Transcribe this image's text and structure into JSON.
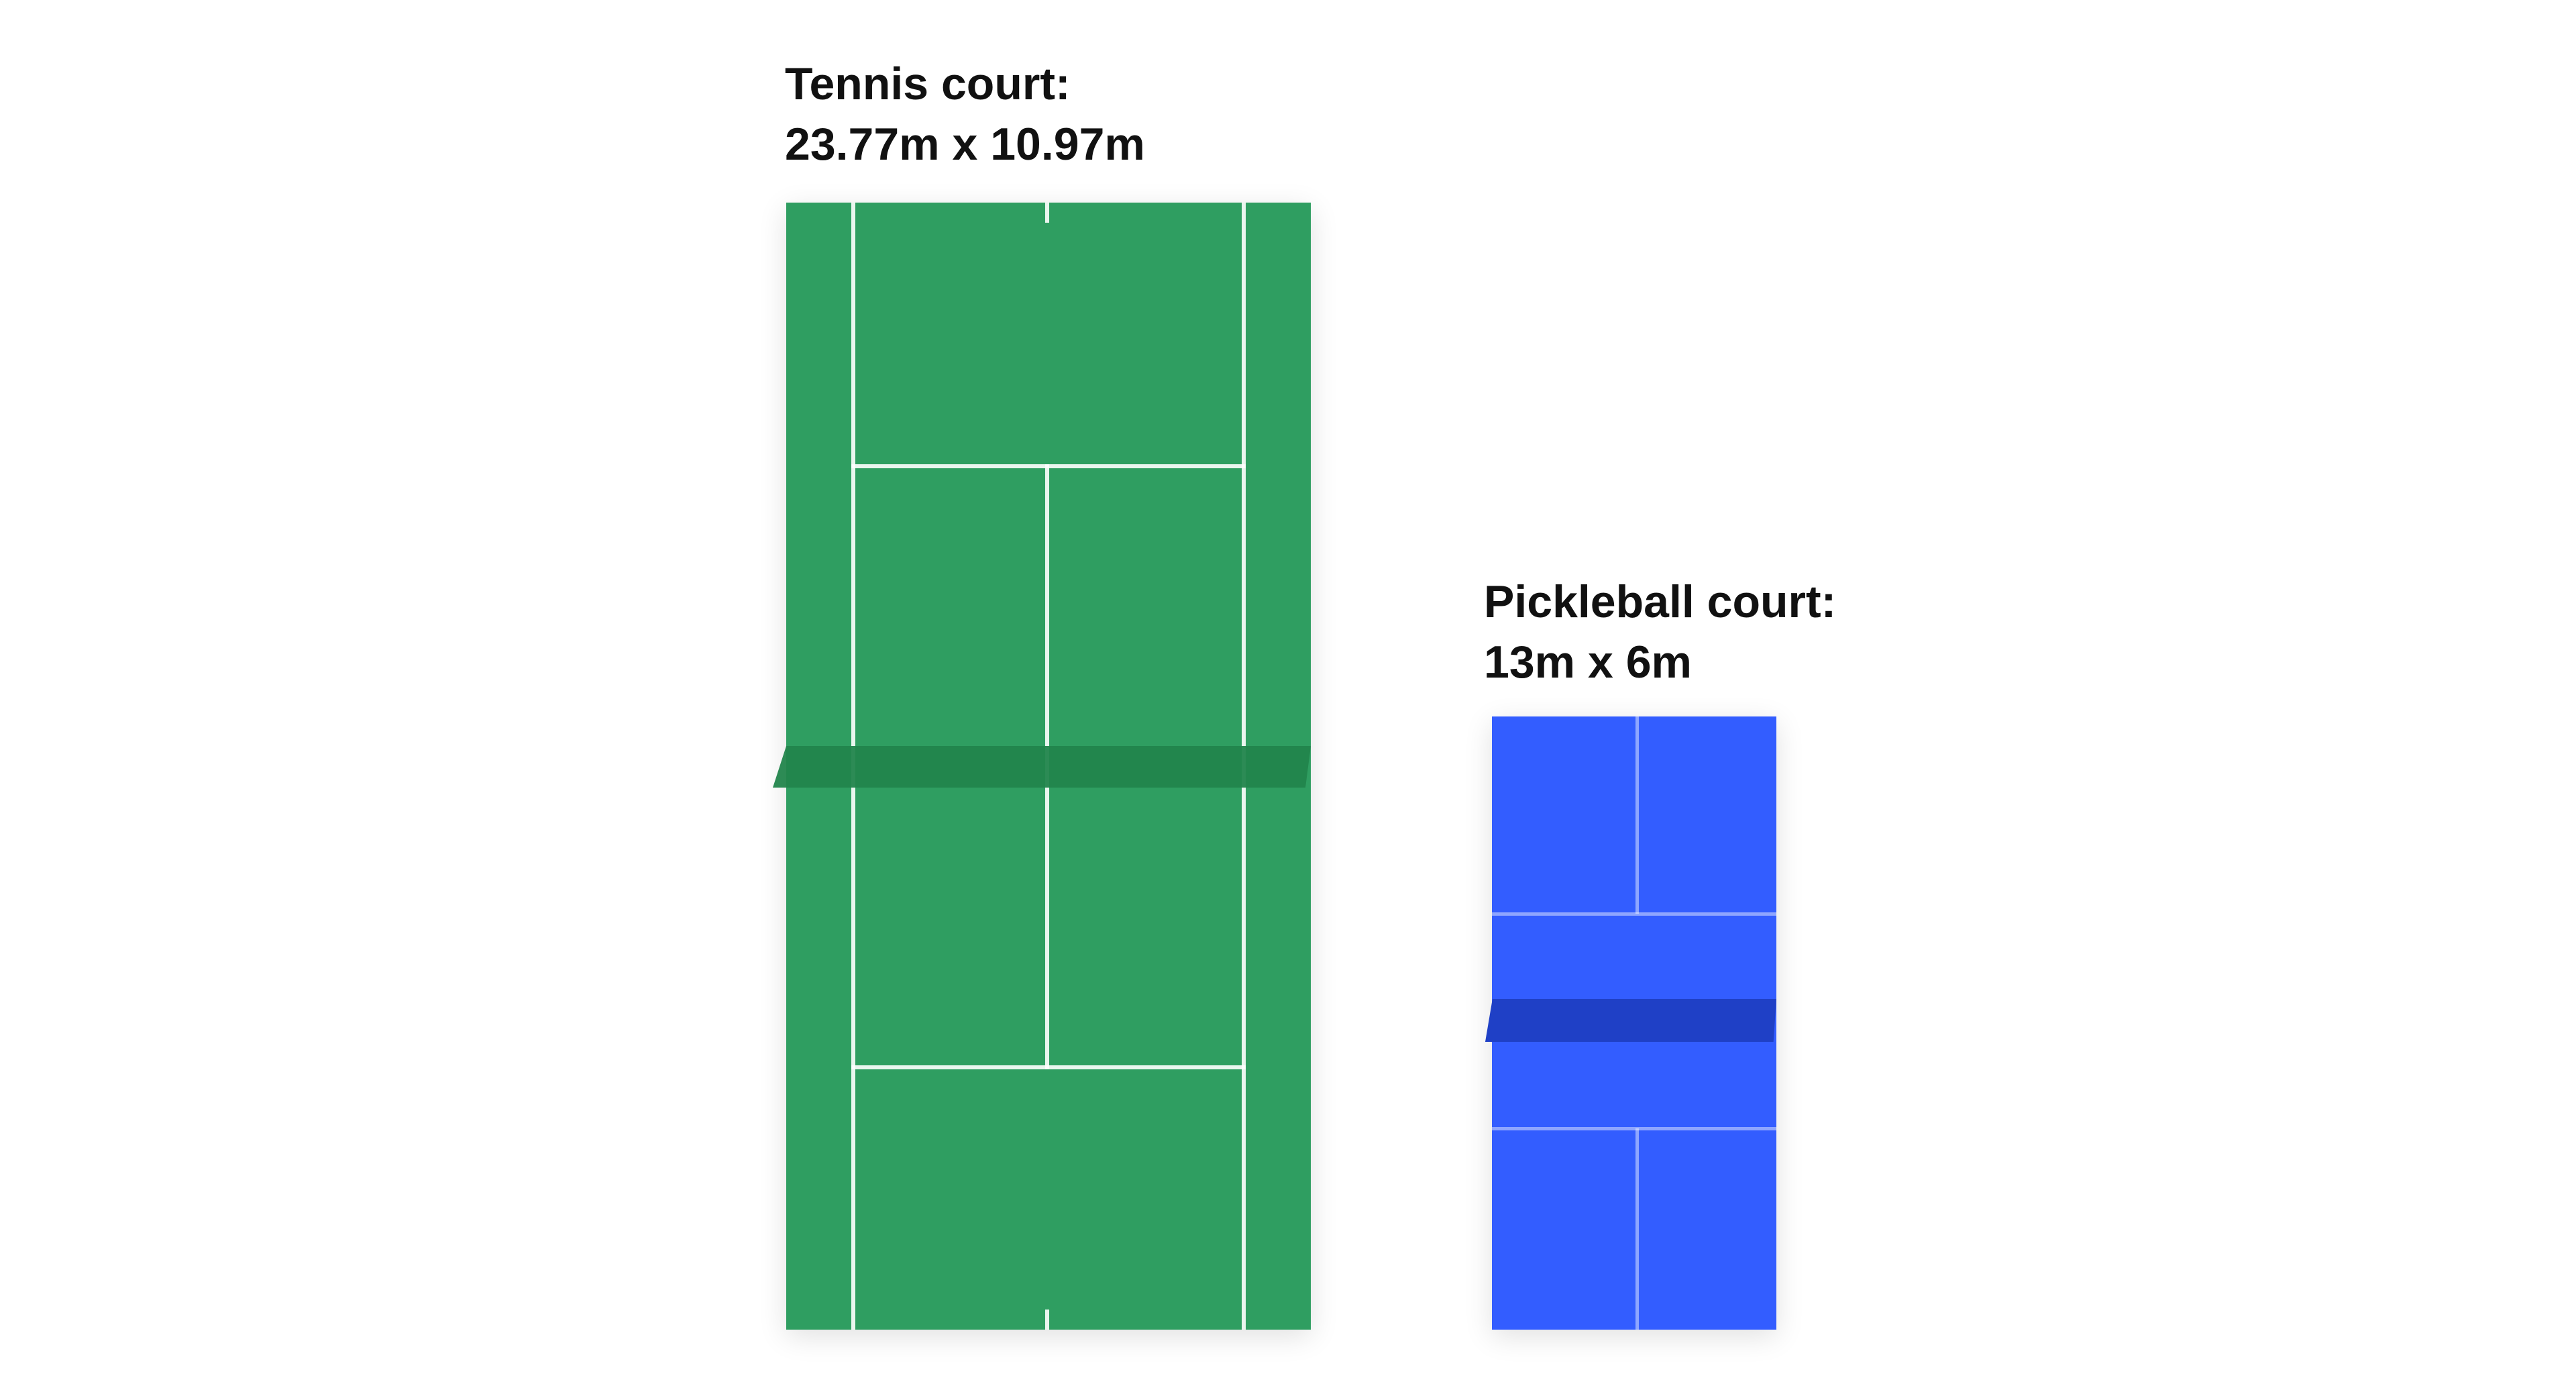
{
  "tennis": {
    "title": "Tennis court:",
    "dimensions": "23.77m x 10.97m",
    "color": "#2f9e61",
    "net_color": "#22854c"
  },
  "pickleball": {
    "title": "Pickleball court:",
    "dimensions": "13m x 6m",
    "color": "#335dff",
    "net_color": "#1f40c6"
  }
}
